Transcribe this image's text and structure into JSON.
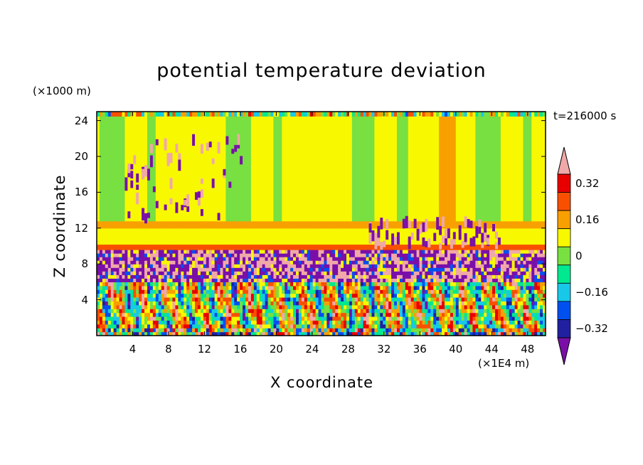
{
  "chart_data": {
    "type": "heatmap",
    "title": "potential temperature deviation",
    "xlabel": "X coordinate",
    "ylabel": "Z coordinate",
    "x_multiplier_label": "(×1E4 m)",
    "y_multiplier_label": "(×1000 m)",
    "time_label": "t=216000 s",
    "xlim": [
      0,
      50
    ],
    "ylim": [
      0,
      25
    ],
    "x_ticks": [
      "4",
      "8",
      "12",
      "16",
      "20",
      "24",
      "28",
      "32",
      "36",
      "40",
      "44",
      "48"
    ],
    "y_ticks": [
      "4",
      "8",
      "12",
      "16",
      "20",
      "24"
    ],
    "colorbar": {
      "levels": [
        -0.4,
        -0.32,
        -0.24,
        -0.16,
        -0.08,
        0,
        0.08,
        0.16,
        0.24,
        0.32,
        0.4
      ],
      "tick_labels": [
        "0.32",
        "0.16",
        "0",
        "−0.16",
        "−0.32"
      ],
      "colors": [
        "#7a0fa8",
        "#2020a0",
        "#0050f0",
        "#18c8e8",
        "#00e890",
        "#78e040",
        "#f8f800",
        "#f8a000",
        "#f85000",
        "#e80000",
        "#f0a8a8"
      ]
    },
    "bands": [
      {
        "z": [
          0,
          6
        ],
        "pattern": "turbulent convective mixing, alternating strong positive and negative deviations"
      },
      {
        "z": [
          6,
          9.6
        ],
        "pattern": "large negative (purple) and positive (pink) plumes"
      },
      {
        "z": [
          9.6,
          10.2
        ],
        "value": 0.24
      },
      {
        "z": [
          10.2,
          12
        ],
        "value": 0.04
      },
      {
        "z": [
          12,
          12.8
        ],
        "value": 0.16
      },
      {
        "z": [
          12.8,
          24.5
        ],
        "value": 0.02,
        "note": "mostly near zero with weak negative columns"
      }
    ]
  }
}
